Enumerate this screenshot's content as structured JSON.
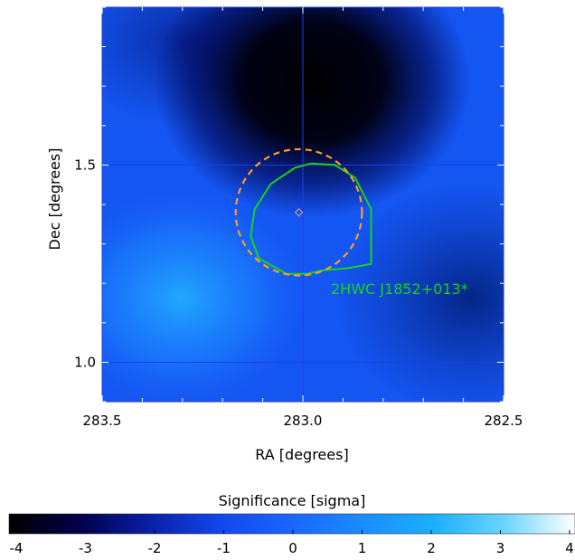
{
  "chart_data": {
    "type": "heatmap",
    "title": "",
    "xlabel": "RA [degrees]",
    "ylabel": "Dec [degrees]",
    "xlim": [
      283.5,
      282.5
    ],
    "ylim": [
      0.9,
      1.9
    ],
    "x_axis_inverted": true,
    "x_ticks": [
      "283.5",
      "283.0",
      "282.5"
    ],
    "y_ticks": [
      "1.0",
      "1.5"
    ],
    "grid": true,
    "colorbar": {
      "label": "Significance [sigma]",
      "range": [
        -4,
        4
      ],
      "ticks": [
        "-4",
        "-3",
        "-2",
        "-1",
        "0",
        "1",
        "2",
        "3",
        "4"
      ],
      "colors": [
        "#000000",
        "#01014a",
        "#0a1fa8",
        "#1248ec",
        "#1a66ff",
        "#1b8cff",
        "#1ab0ff",
        "#6cd4ff",
        "#ffffff"
      ]
    },
    "map_features": [
      {
        "kind": "deficit",
        "ra": 283.01,
        "dec": 1.78,
        "significance": -4.0
      },
      {
        "kind": "excess",
        "ra": 283.28,
        "dec": 1.12,
        "significance": 1.8
      }
    ],
    "source": {
      "name": "2HWC J1852+013*",
      "ra": 283.01,
      "dec": 1.38,
      "extension_radius_deg": 0.16,
      "marker": "diamond",
      "circle_style": "dashed",
      "circle_color": "#ff9d1c",
      "contour_color": "#19d219"
    },
    "contour": {
      "ra": [
        282.98,
        282.92,
        282.87,
        282.83,
        282.83,
        282.83,
        282.89,
        282.95,
        282.99,
        283.04,
        283.11,
        283.13,
        283.12,
        283.08,
        283.02,
        282.98
      ],
      "dec": [
        1.504,
        1.5,
        1.468,
        1.388,
        1.32,
        1.249,
        1.238,
        1.233,
        1.224,
        1.224,
        1.263,
        1.32,
        1.388,
        1.452,
        1.493,
        1.504
      ]
    }
  }
}
